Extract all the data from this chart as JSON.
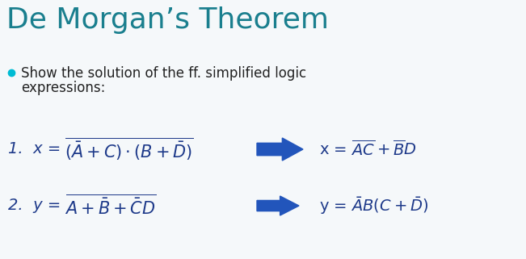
{
  "title": "De Morgan’s Theorem",
  "title_color": "#1a7f8e",
  "title_fontsize": 26,
  "bullet_color": "#00bcd4",
  "bullet_text_line1": "Show the solution of the ff. simplified logic",
  "bullet_text_line2": "expressions:",
  "bullet_fontsize": 12,
  "eq_color": "#1e3a8a",
  "eq_fontsize": 14,
  "arrow_color": "#2255bb",
  "bg_color": "#f5f8fa",
  "label_fontsize": 12
}
